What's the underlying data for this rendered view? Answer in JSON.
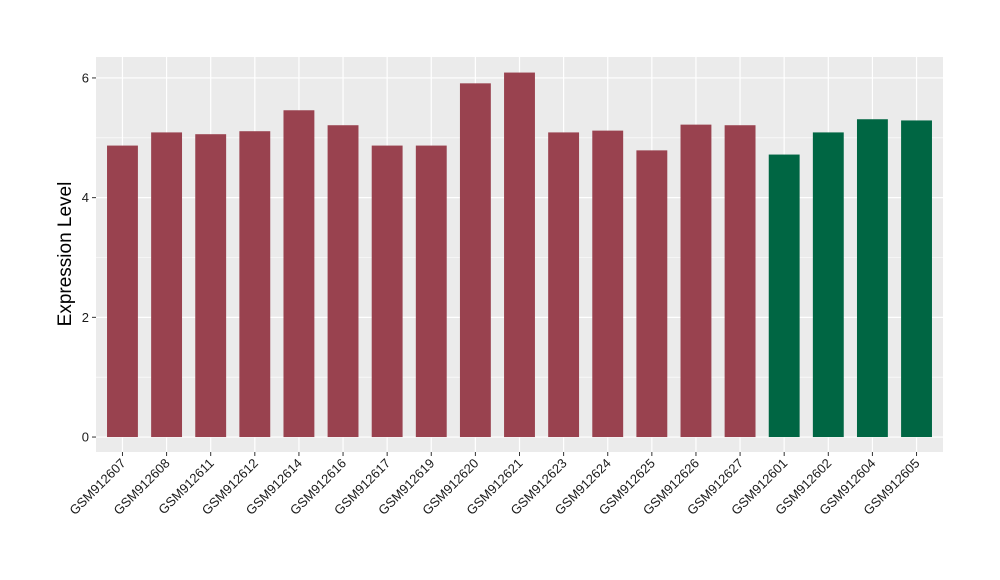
{
  "chart_data": {
    "type": "bar",
    "title": "",
    "xlabel": "",
    "ylabel": "Expression Level",
    "ylim": [
      -0.25,
      6.35
    ],
    "yticks": [
      0,
      2,
      4,
      6
    ],
    "grid": true,
    "legend": "none",
    "categories": [
      "GSM912607",
      "GSM912608",
      "GSM912611",
      "GSM912612",
      "GSM912614",
      "GSM912616",
      "GSM912617",
      "GSM912619",
      "GSM912620",
      "GSM912621",
      "GSM912623",
      "GSM912624",
      "GSM912625",
      "GSM912626",
      "GSM912627",
      "GSM912601",
      "GSM912602",
      "GSM912604",
      "GSM912605"
    ],
    "values": [
      4.87,
      5.09,
      5.06,
      5.11,
      5.46,
      5.21,
      4.87,
      4.87,
      5.91,
      6.09,
      5.09,
      5.12,
      4.79,
      5.22,
      5.21,
      4.72,
      5.09,
      5.31,
      5.29
    ],
    "groups": [
      "a",
      "a",
      "a",
      "a",
      "a",
      "a",
      "a",
      "a",
      "a",
      "a",
      "a",
      "a",
      "a",
      "a",
      "a",
      "b",
      "b",
      "b",
      "b"
    ],
    "colors": {
      "a": "#99424f",
      "b": "#006643"
    },
    "panel_background": "#ebebeb",
    "grid_color": "#ffffff"
  }
}
